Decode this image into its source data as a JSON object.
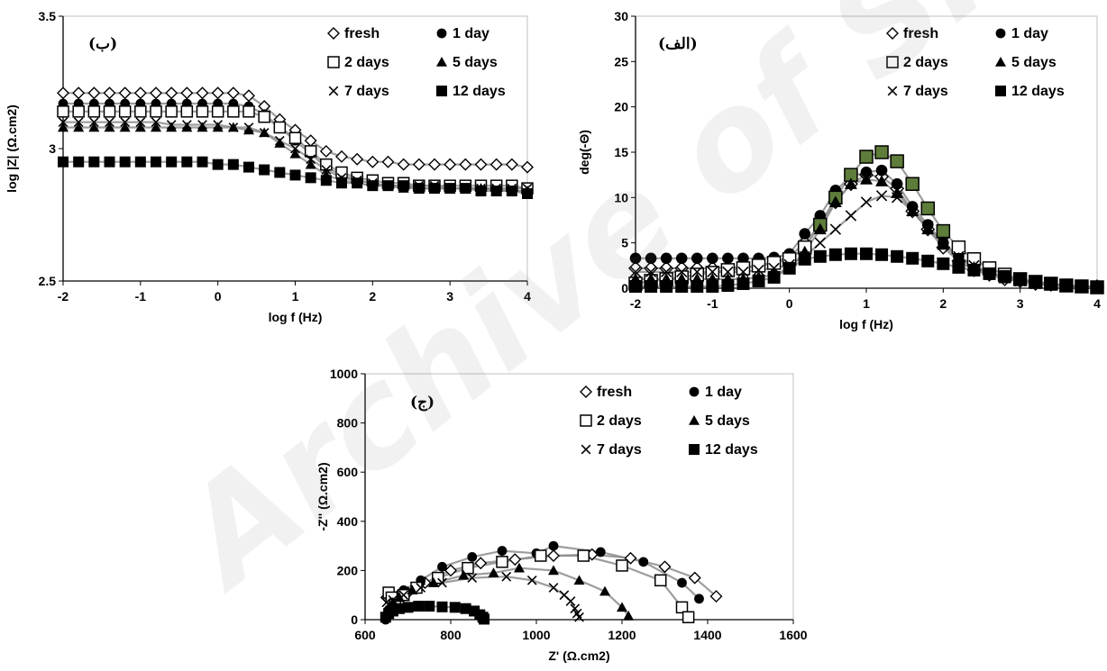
{
  "watermark": "Archive of SID",
  "colors": {
    "axis": "#000000",
    "fit_line": "#8c8c8c",
    "highlight_fill": "#5e7c3a"
  },
  "legend": {
    "entries": [
      {
        "series": "fresh",
        "marker": "diamond-open",
        "label": "fresh"
      },
      {
        "series": "1day",
        "marker": "circle-filled",
        "label": "1 day"
      },
      {
        "series": "2days",
        "marker": "square-open",
        "label": "2 days"
      },
      {
        "series": "5days",
        "marker": "triangle-filled",
        "label": "5 days"
      },
      {
        "series": "7days",
        "marker": "cross",
        "label": "7 days"
      },
      {
        "series": "12days",
        "marker": "square-filled",
        "label": "12 days"
      }
    ]
  },
  "chart_data": [
    {
      "id": "bode-modulus",
      "type": "scatter",
      "panel_label": "(ب)",
      "xlabel": "log f (Hz)",
      "ylabel": "log |Z| (Ω.cm2)",
      "xlim": [
        -2,
        4
      ],
      "ylim": [
        2.5,
        3.5
      ],
      "x_ticks": [
        "-2",
        "-1",
        "0",
        "1",
        "2",
        "3",
        "4"
      ],
      "y_ticks": [
        "2.5",
        "3",
        "3.5"
      ],
      "grid": false,
      "legend_position": "top-right",
      "x": [
        -2.0,
        -1.8,
        -1.6,
        -1.4,
        -1.2,
        -1.0,
        -0.8,
        -0.6,
        -0.4,
        -0.2,
        0.0,
        0.2,
        0.4,
        0.6,
        0.8,
        1.0,
        1.2,
        1.4,
        1.6,
        1.8,
        2.0,
        2.2,
        2.4,
        2.6,
        2.8,
        3.0,
        3.2,
        3.4,
        3.6,
        3.8,
        4.0
      ],
      "series": [
        {
          "name": "fresh",
          "marker": "diamond-open",
          "values": [
            3.21,
            3.21,
            3.21,
            3.21,
            3.21,
            3.21,
            3.21,
            3.21,
            3.21,
            3.21,
            3.21,
            3.21,
            3.2,
            3.16,
            3.11,
            3.07,
            3.03,
            2.99,
            2.97,
            2.96,
            2.95,
            2.95,
            2.94,
            2.94,
            2.94,
            2.94,
            2.94,
            2.94,
            2.94,
            2.94,
            2.93
          ]
        },
        {
          "name": "1 day",
          "marker": "circle-filled",
          "values": [
            3.17,
            3.17,
            3.17,
            3.17,
            3.17,
            3.17,
            3.17,
            3.17,
            3.17,
            3.17,
            3.17,
            3.17,
            3.16,
            3.13,
            3.08,
            3.03,
            2.98,
            2.93,
            2.9,
            2.88,
            2.87,
            2.86,
            2.86,
            2.85,
            2.85,
            2.85,
            2.85,
            2.85,
            2.85,
            2.84,
            2.84
          ]
        },
        {
          "name": "2 days",
          "marker": "square-open",
          "values": [
            3.14,
            3.14,
            3.14,
            3.14,
            3.14,
            3.14,
            3.14,
            3.14,
            3.14,
            3.14,
            3.14,
            3.14,
            3.14,
            3.12,
            3.08,
            3.04,
            2.99,
            2.94,
            2.91,
            2.89,
            2.88,
            2.87,
            2.87,
            2.86,
            2.86,
            2.86,
            2.86,
            2.86,
            2.86,
            2.86,
            2.85
          ]
        },
        {
          "name": "5 days",
          "marker": "triangle-filled",
          "values": [
            3.08,
            3.08,
            3.08,
            3.08,
            3.08,
            3.08,
            3.08,
            3.08,
            3.08,
            3.08,
            3.08,
            3.08,
            3.07,
            3.06,
            3.02,
            2.98,
            2.94,
            2.9,
            2.88,
            2.87,
            2.86,
            2.86,
            2.85,
            2.85,
            2.85,
            2.85,
            2.85,
            2.85,
            2.84,
            2.84,
            2.84
          ]
        },
        {
          "name": "7 days",
          "marker": "cross",
          "values": [
            3.1,
            3.1,
            3.1,
            3.1,
            3.1,
            3.1,
            3.1,
            3.09,
            3.09,
            3.09,
            3.09,
            3.08,
            3.08,
            3.06,
            3.03,
            3.0,
            2.96,
            2.92,
            2.89,
            2.88,
            2.87,
            2.86,
            2.86,
            2.86,
            2.86,
            2.85,
            2.85,
            2.85,
            2.85,
            2.85,
            2.85
          ]
        },
        {
          "name": "12 days",
          "marker": "square-filled",
          "values": [
            2.95,
            2.95,
            2.95,
            2.95,
            2.95,
            2.95,
            2.95,
            2.95,
            2.95,
            2.95,
            2.94,
            2.94,
            2.93,
            2.92,
            2.91,
            2.9,
            2.89,
            2.88,
            2.87,
            2.87,
            2.86,
            2.86,
            2.86,
            2.85,
            2.85,
            2.85,
            2.85,
            2.84,
            2.84,
            2.84,
            2.83
          ]
        }
      ]
    },
    {
      "id": "bode-phase",
      "type": "scatter",
      "panel_label": "(الف)",
      "xlabel": "log f (Hz)",
      "ylabel": "deg(-Θ)",
      "xlim": [
        -2,
        4
      ],
      "ylim": [
        0,
        30
      ],
      "x_ticks": [
        "-2",
        "-1",
        "0",
        "1",
        "2",
        "3",
        "4"
      ],
      "y_ticks": [
        "0",
        "5",
        "10",
        "15",
        "20",
        "25",
        "30"
      ],
      "grid": false,
      "legend_position": "top-right",
      "x": [
        -2.0,
        -1.8,
        -1.6,
        -1.4,
        -1.2,
        -1.0,
        -0.8,
        -0.6,
        -0.4,
        -0.2,
        0.0,
        0.2,
        0.4,
        0.6,
        0.8,
        1.0,
        1.2,
        1.4,
        1.6,
        1.8,
        2.0,
        2.2,
        2.4,
        2.6,
        2.8,
        3.0,
        3.2,
        3.4,
        3.6,
        3.8,
        4.0
      ],
      "series": [
        {
          "name": "fresh",
          "marker": "diamond-open",
          "values": [
            2.2,
            2.2,
            2.2,
            2.2,
            2.2,
            2.2,
            2.3,
            2.3,
            2.5,
            2.8,
            3.5,
            5.0,
            7.0,
            9.5,
            11.5,
            12.5,
            12.3,
            11.0,
            8.5,
            6.5,
            4.5,
            3.0,
            2.0,
            1.5,
            1.0,
            0.8,
            0.5,
            0.4,
            0.3,
            0.2,
            0.2
          ]
        },
        {
          "name": "1 day",
          "marker": "circle-filled",
          "values": [
            3.3,
            3.3,
            3.3,
            3.3,
            3.3,
            3.3,
            3.3,
            3.3,
            3.3,
            3.4,
            3.8,
            6.0,
            8.0,
            10.8,
            12.3,
            12.8,
            13.0,
            11.5,
            9.0,
            7.0,
            5.0,
            3.5,
            2.5,
            1.7,
            1.2,
            0.9,
            0.6,
            0.4,
            0.3,
            0.2,
            0.2
          ]
        },
        {
          "name": "2 days",
          "marker": "square-open",
          "values": [
            0.5,
            0.8,
            1.0,
            1.2,
            1.5,
            1.7,
            2.0,
            2.2,
            2.5,
            2.8,
            3.2,
            4.5,
            7.0,
            10.0,
            12.5,
            14.5,
            15.0,
            14.0,
            11.5,
            8.8,
            6.3,
            4.5,
            3.2,
            2.2,
            1.5,
            1.0,
            0.7,
            0.5,
            0.3,
            0.2,
            0.1
          ]
        },
        {
          "name": "5 days",
          "marker": "triangle-filled",
          "values": [
            1.0,
            1.0,
            1.0,
            1.0,
            1.0,
            1.0,
            1.0,
            1.0,
            1.2,
            1.5,
            2.2,
            4.0,
            6.5,
            9.5,
            11.5,
            12.0,
            11.8,
            10.5,
            8.5,
            6.5,
            4.8,
            3.3,
            2.3,
            1.6,
            1.1,
            0.8,
            0.5,
            0.3,
            0.2,
            0.2,
            0.1
          ]
        },
        {
          "name": "7 days",
          "marker": "cross",
          "values": [
            1.8,
            1.8,
            1.8,
            1.8,
            1.8,
            1.8,
            1.8,
            1.8,
            2.0,
            2.2,
            2.6,
            3.5,
            5.0,
            6.5,
            8.0,
            9.5,
            10.2,
            10.0,
            8.5,
            6.8,
            5.0,
            3.5,
            2.5,
            1.7,
            1.2,
            0.8,
            0.5,
            0.4,
            0.3,
            0.2,
            0.1
          ]
        },
        {
          "name": "12 days",
          "marker": "square-filled",
          "values": [
            0.2,
            0.2,
            0.2,
            0.2,
            0.2,
            0.2,
            0.3,
            0.5,
            0.8,
            1.2,
            2.2,
            3.2,
            3.5,
            3.7,
            3.8,
            3.8,
            3.7,
            3.5,
            3.3,
            3.0,
            2.7,
            2.3,
            2.0,
            1.6,
            1.3,
            1.0,
            0.7,
            0.5,
            0.3,
            0.2,
            0.1
          ]
        }
      ]
    },
    {
      "id": "nyquist",
      "type": "scatter",
      "panel_label": "(ج)",
      "xlabel": "Z' (Ω.cm2)",
      "ylabel": "-Z'' (Ω.cm2)",
      "xlim": [
        600,
        1600
      ],
      "ylim": [
        0,
        1000
      ],
      "x_ticks": [
        "600",
        "800",
        "1000",
        "1200",
        "1400",
        "1600"
      ],
      "y_ticks": [
        "0",
        "200",
        "400",
        "600",
        "800",
        "1000"
      ],
      "grid": false,
      "legend_position": "top-right",
      "series": [
        {
          "name": "fresh",
          "marker": "diamond-open",
          "x": [
            650,
            660,
            675,
            700,
            740,
            800,
            870,
            950,
            1040,
            1130,
            1220,
            1300,
            1370,
            1420
          ],
          "y": [
            90,
            85,
            95,
            110,
            150,
            200,
            230,
            245,
            260,
            265,
            250,
            215,
            170,
            95
          ]
        },
        {
          "name": "1 day",
          "marker": "circle-filled",
          "values_note": "",
          "x": [
            648,
            655,
            665,
            690,
            730,
            780,
            850,
            920,
            1000,
            1040,
            1150,
            1250,
            1340,
            1380
          ],
          "y": [
            0,
            40,
            80,
            120,
            160,
            215,
            255,
            280,
            270,
            300,
            275,
            235,
            150,
            85
          ]
        },
        {
          "name": "2 days",
          "marker": "square-open",
          "x": [
            655,
            662,
            670,
            690,
            720,
            770,
            840,
            920,
            1010,
            1110,
            1200,
            1290,
            1340,
            1355
          ],
          "y": [
            110,
            90,
            60,
            100,
            130,
            170,
            210,
            235,
            260,
            260,
            220,
            160,
            50,
            10
          ]
        },
        {
          "name": "5 days",
          "marker": "triangle-filled",
          "x": [
            648,
            655,
            665,
            680,
            710,
            760,
            830,
            900,
            960,
            1040,
            1100,
            1160,
            1200,
            1215
          ],
          "y": [
            20,
            50,
            70,
            90,
            120,
            150,
            180,
            190,
            210,
            200,
            160,
            115,
            50,
            15
          ]
        },
        {
          "name": "7 days",
          "marker": "cross",
          "x": [
            650,
            665,
            690,
            730,
            780,
            850,
            930,
            990,
            1040,
            1065,
            1080,
            1090,
            1095,
            1100
          ],
          "y": [
            70,
            80,
            100,
            130,
            150,
            170,
            175,
            160,
            130,
            100,
            75,
            45,
            25,
            10
          ]
        },
        {
          "name": "12 days",
          "marker": "square-filled",
          "x": [
            648,
            655,
            665,
            680,
            700,
            725,
            750,
            780,
            810,
            835,
            855,
            868,
            875,
            878
          ],
          "y": [
            10,
            25,
            35,
            45,
            50,
            55,
            55,
            52,
            50,
            45,
            35,
            20,
            10,
            2
          ]
        }
      ]
    }
  ]
}
